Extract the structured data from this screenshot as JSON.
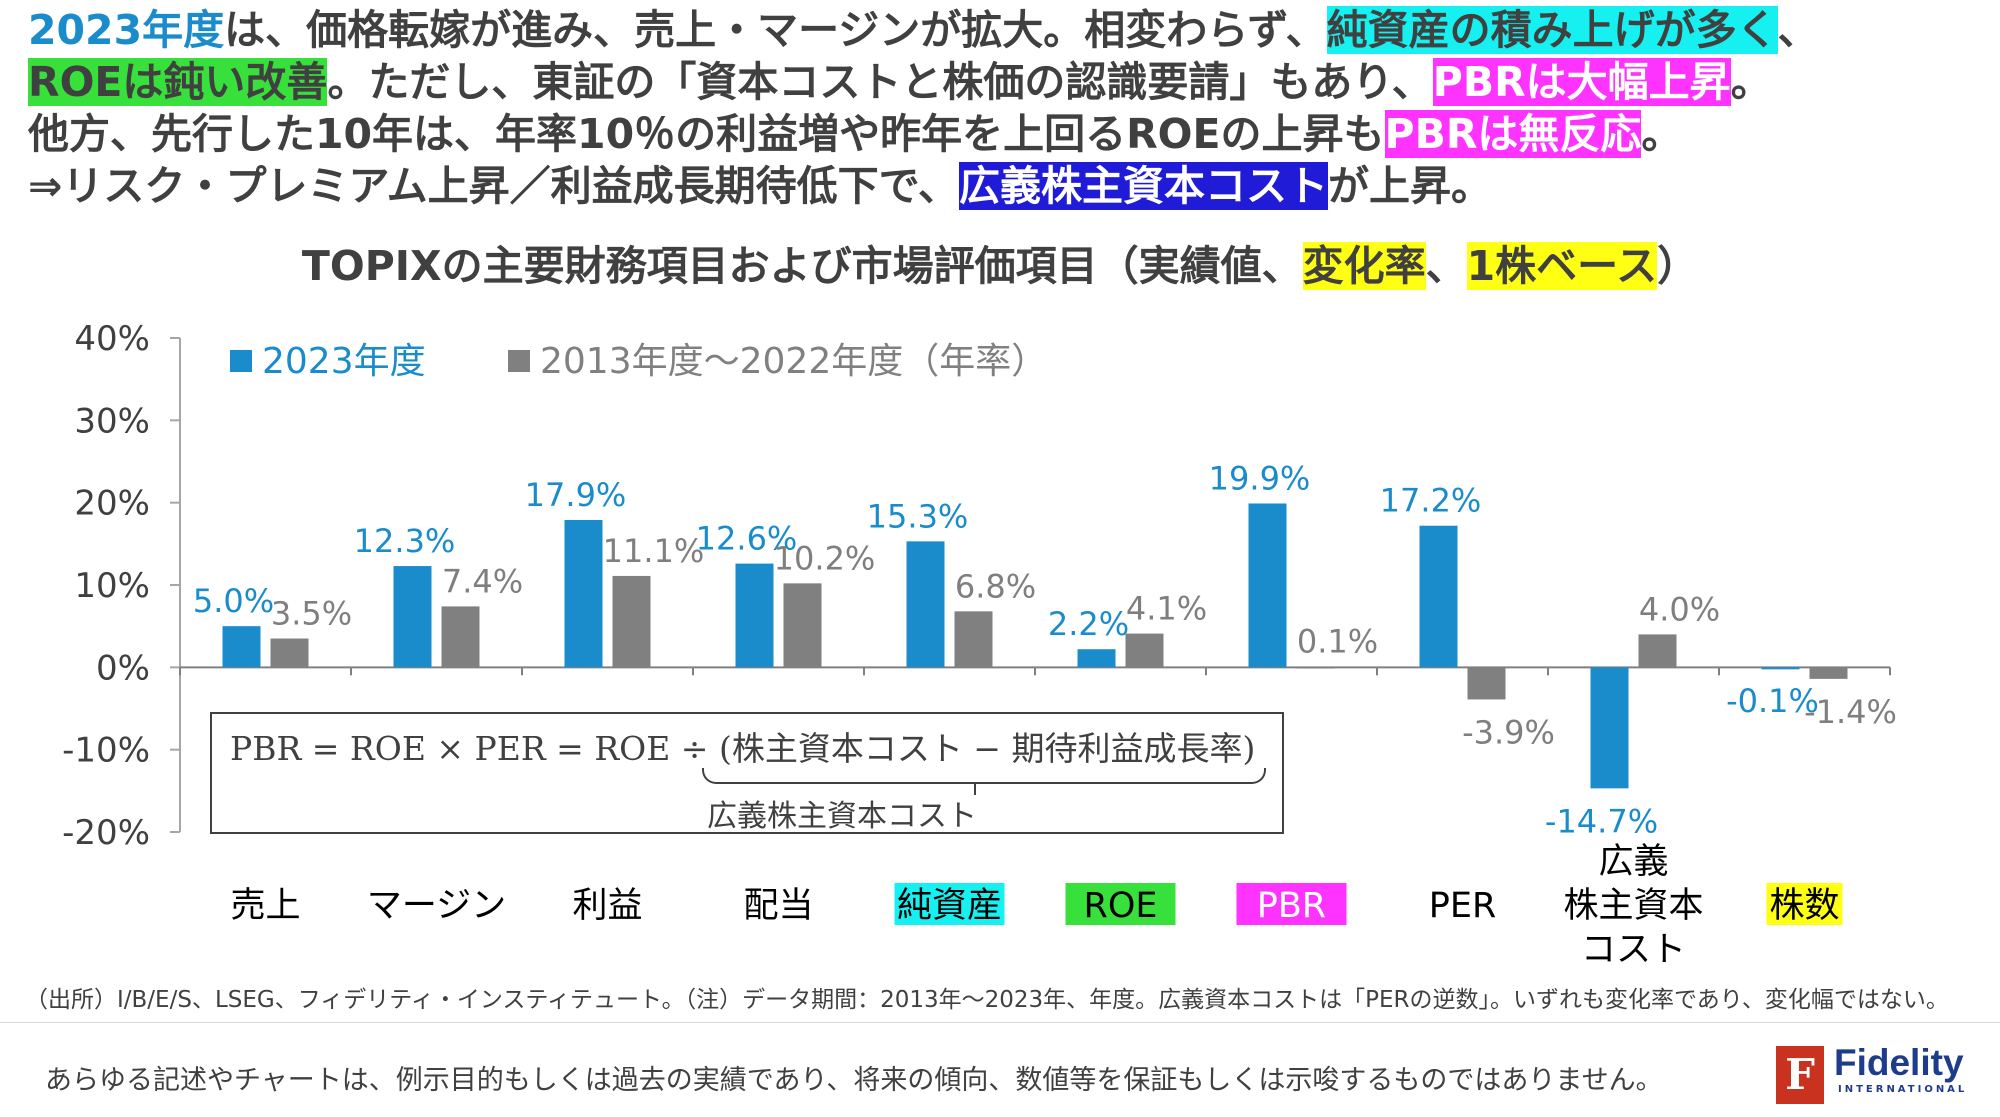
{
  "headline": {
    "line1": [
      {
        "text": "2023年度",
        "style": "blue-text"
      },
      {
        "text": "は、価格転嫁が進み、売上・マージンが拡大。相変わらず、",
        "style": ""
      },
      {
        "text": "純資産の積み上げが多く",
        "style": "cyan"
      },
      {
        "text": "、",
        "style": ""
      }
    ],
    "line2": [
      {
        "text": "ROEは鈍い改善",
        "style": "green"
      },
      {
        "text": "。ただし、東証の「資本コストと株価の認識要請」もあり、",
        "style": ""
      },
      {
        "text": "PBRは大幅上昇",
        "style": "magenta"
      },
      {
        "text": "。",
        "style": ""
      }
    ],
    "line3": [
      {
        "text": "他方、先行した10年は、年率10％の利益増や昨年を上回るROEの上昇も",
        "style": ""
      },
      {
        "text": "PBRは無反応",
        "style": "magenta"
      },
      {
        "text": "。",
        "style": ""
      }
    ],
    "line4": [
      {
        "text": "⇒リスク・プレミアム上昇／利益成長期待低下で、",
        "style": ""
      },
      {
        "text": "広義株主資本コスト",
        "style": "navy"
      },
      {
        "text": "が上昇。",
        "style": ""
      }
    ]
  },
  "chart_title": {
    "part1": "TOPIXの主要財務項目および市場評価項目（実績値、",
    "part2": "変化率",
    "part3": "、",
    "part4": "1株ベース",
    "part5": "）"
  },
  "chart_data": {
    "type": "bar",
    "categories": [
      "売上",
      "マージン",
      "利益",
      "配当",
      "純資産",
      "ROE",
      "PBR",
      "PER",
      "広義\n株主資本\nコスト",
      "株数"
    ],
    "category_highlight": [
      "",
      "",
      "",
      "",
      "#16F0F0",
      "#37E03A",
      "#FF33FF",
      "",
      "",
      "#FFFF14"
    ],
    "category_text_color": [
      "",
      "",
      "",
      "",
      "",
      "",
      "#ffffff",
      "",
      "",
      ""
    ],
    "series": [
      {
        "name": "2023年度",
        "color": "#1A8CCC",
        "values": [
          5.0,
          12.3,
          17.9,
          12.6,
          15.3,
          2.2,
          19.9,
          17.2,
          -14.7,
          -0.1
        ]
      },
      {
        "name": "2013年度～2022年度（年率）",
        "color": "#808080",
        "values": [
          3.5,
          7.4,
          11.1,
          10.2,
          6.8,
          4.1,
          0.1,
          -3.9,
          4.0,
          -1.4
        ]
      }
    ],
    "y_ticks": [
      "40%",
      "30%",
      "20%",
      "10%",
      "0%",
      "-10%",
      "-20%"
    ],
    "ylim": [
      -20,
      40
    ],
    "unit": "%",
    "legend_position": "top-left",
    "grid": false
  },
  "formula": {
    "main": "PBR = ROE × PER = ROE ÷ (株主資本コスト − 期待利益成長率)",
    "sub": "広義株主資本コスト"
  },
  "footnote": "（出所）I/B/E/S、LSEG、フィデリティ・インスティテュート。（注）データ期間：2013年～2023年、年度。広義資本コストは「PERの逆数」。いずれも変化率であり、変化幅ではない。",
  "disclaimer": "あらゆる記述やチャートは、例示目的もしくは過去の実績であり、将来の傾向、数値等を保証もしくは示唆するものではありません。",
  "logo": {
    "mark": "F",
    "name": "Fidelity",
    "sub": "INTERNATIONAL"
  }
}
